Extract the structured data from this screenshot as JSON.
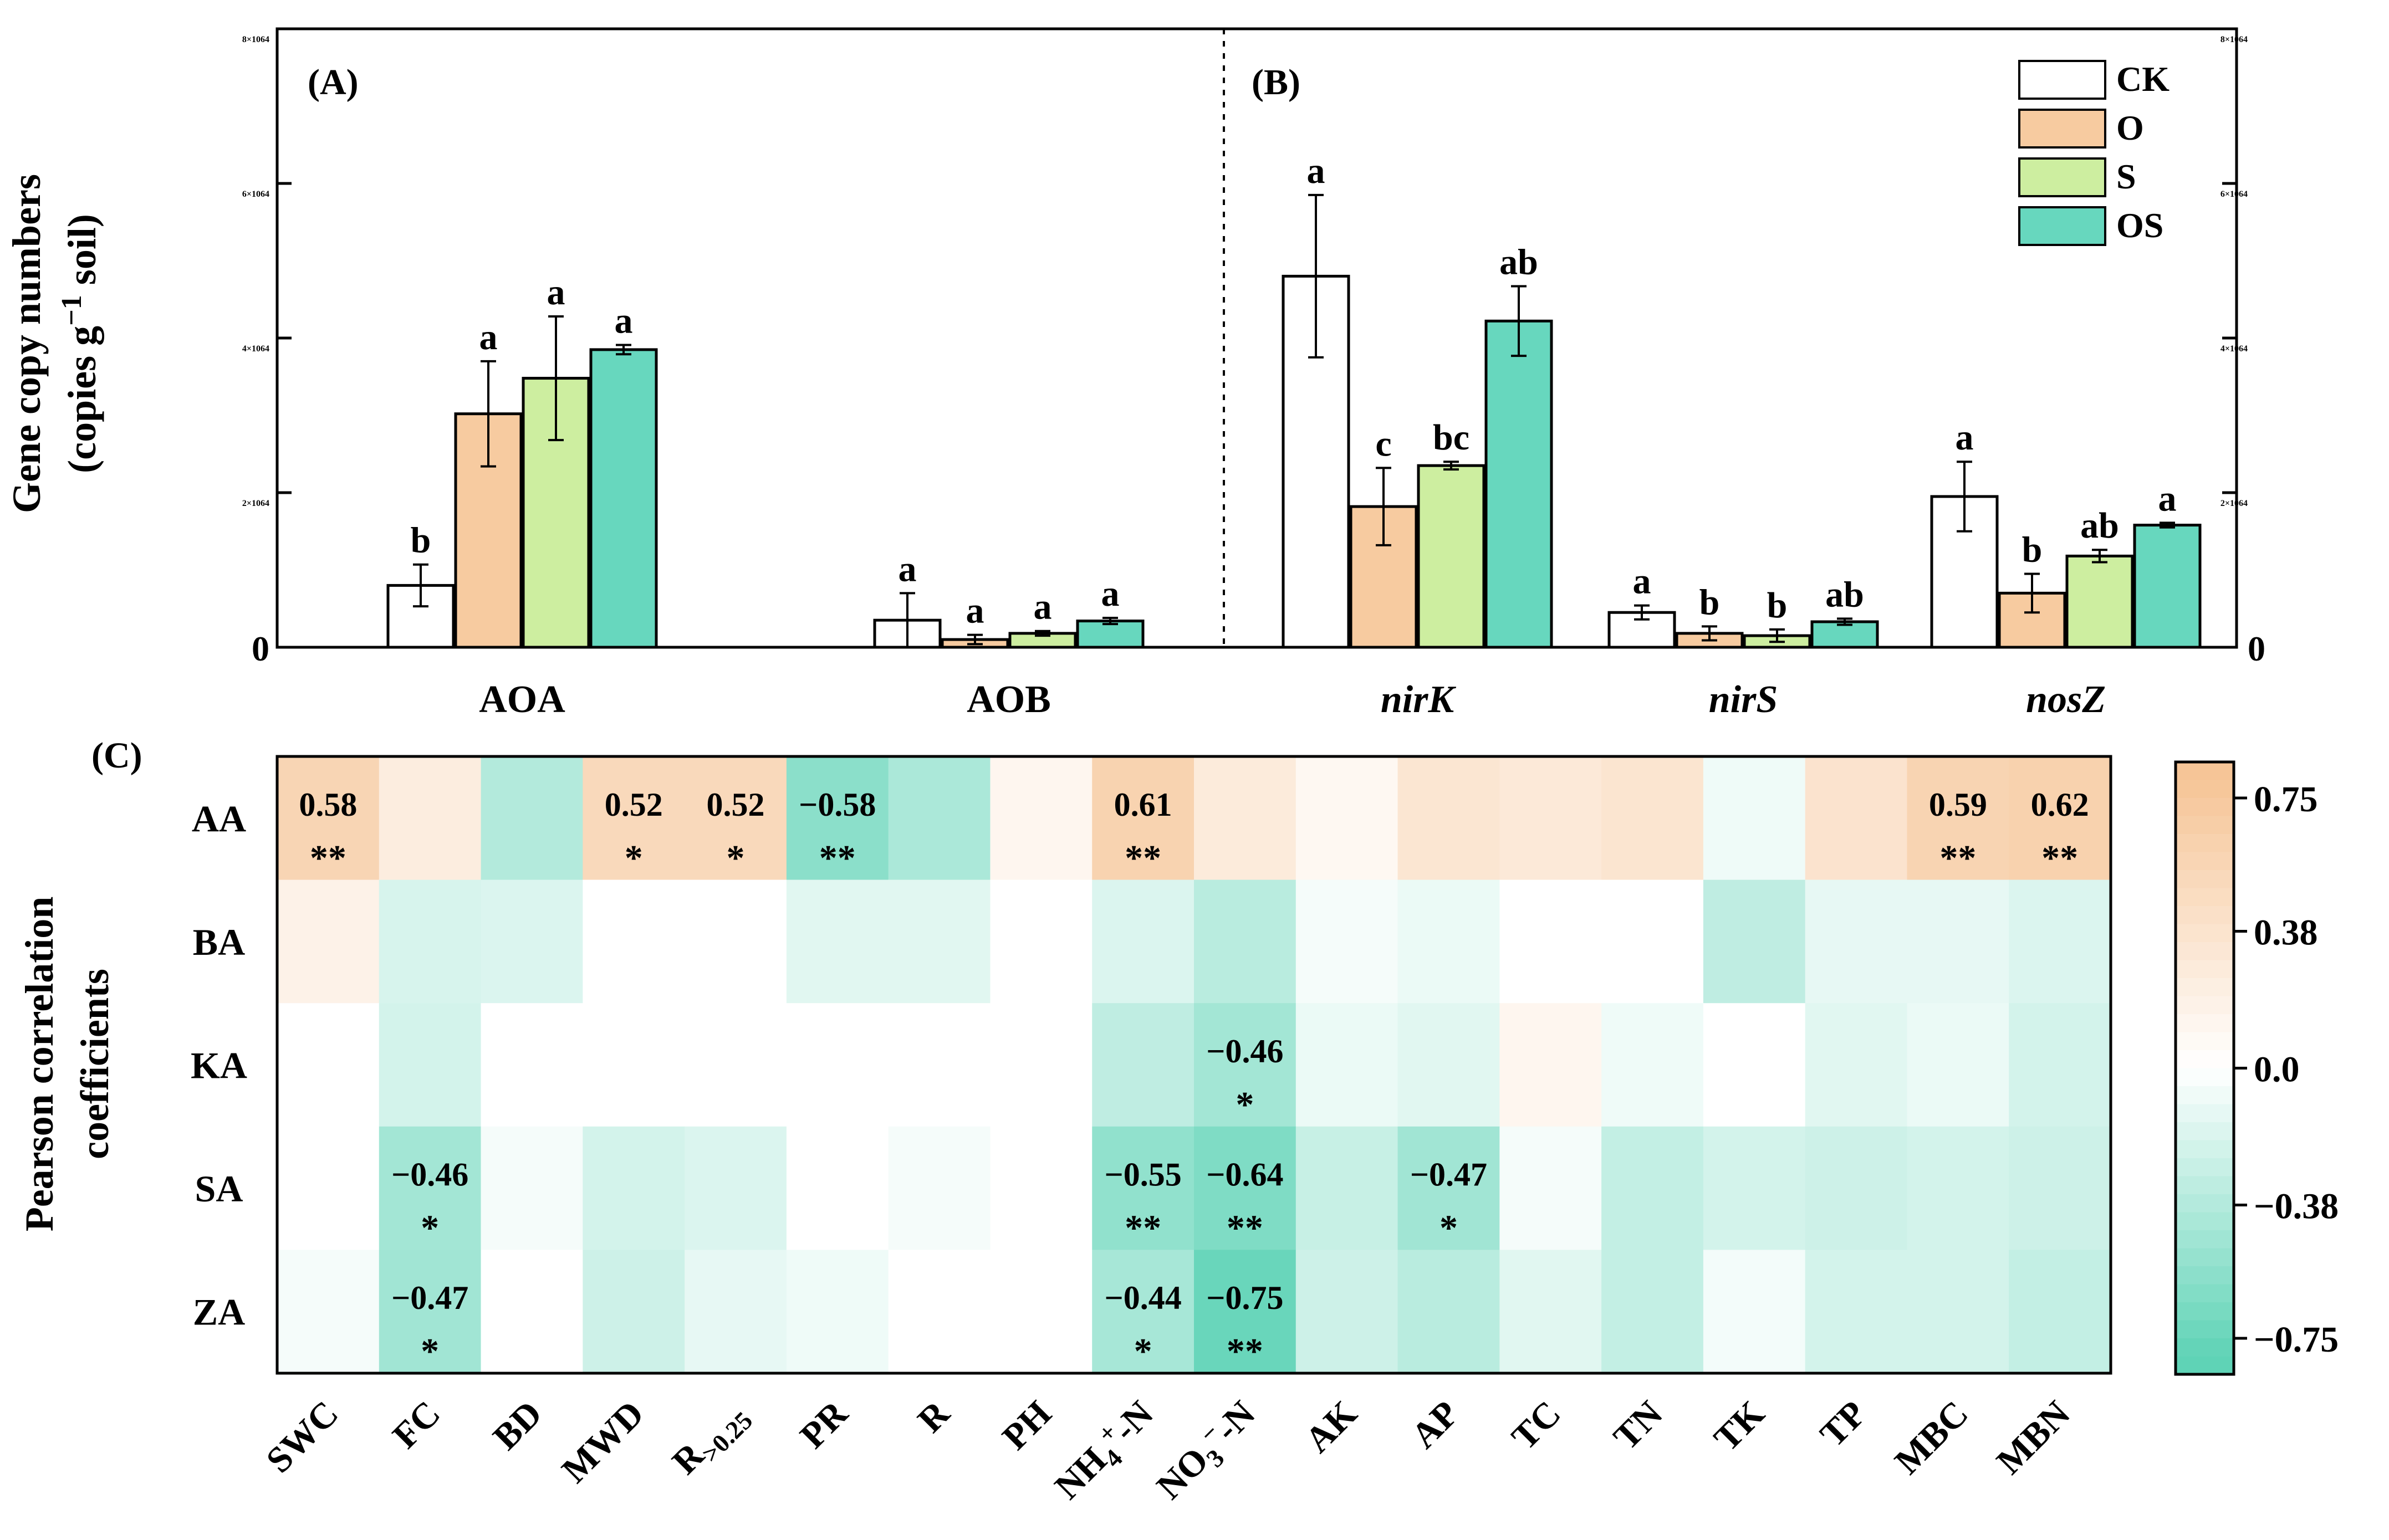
{
  "chart_data": [
    {
      "type": "bar",
      "panel": "(A)",
      "categories": [
        "AOA",
        "AOB"
      ],
      "ylabel_line1": "Gene copy numbers",
      "ylabel_line2a": "(copies g",
      "ylabel_line2sup": "−1",
      "ylabel_line2b": " soil)",
      "yticks": [
        {
          "value": 0,
          "label": "0"
        },
        {
          "value": 20000000.0,
          "label": "2×10",
          "exp": "7"
        },
        {
          "value": 40000000.0,
          "label": "4×10",
          "exp": "7"
        },
        {
          "value": 60000000.0,
          "label": "6×10",
          "exp": "7"
        },
        {
          "value": 80000000.0,
          "label": "8×10",
          "exp": "7"
        }
      ],
      "ylim": [
        0,
        80000000.0
      ],
      "series": [
        {
          "name": "CK",
          "color": "#ffffff",
          "values": [
            8000000.0,
            3500000.0
          ],
          "errors": [
            2700000.0,
            3500000.0
          ],
          "letters": [
            "b",
            "a"
          ]
        },
        {
          "name": "O",
          "color": "#f7cba0",
          "values": [
            30200000.0,
            1000000.0
          ],
          "errors": [
            6800000.0,
            600000.0
          ],
          "letters": [
            "a",
            "a"
          ]
        },
        {
          "name": "S",
          "color": "#cdeea0",
          "values": [
            34800000.0,
            1800000.0
          ],
          "errors": [
            8000000.0,
            300000.0
          ],
          "letters": [
            "a",
            "a"
          ]
        },
        {
          "name": "OS",
          "color": "#67d7be",
          "values": [
            38500000.0,
            3400000.0
          ],
          "errors": [
            600000.0,
            400000.0
          ],
          "letters": [
            "a",
            "a"
          ]
        }
      ]
    },
    {
      "type": "bar",
      "panel": "(B)",
      "categories": [
        "nirK",
        "nirS",
        "nosZ"
      ],
      "yticks": [
        {
          "value": 0,
          "label": "0"
        },
        {
          "value": 2000000.0,
          "label": "2×10",
          "exp": "6"
        },
        {
          "value": 4000000.0,
          "label": "4×10",
          "exp": "6"
        },
        {
          "value": 6000000.0,
          "label": "6×10",
          "exp": "6"
        },
        {
          "value": 8000000.0,
          "label": "8×10",
          "exp": "6"
        }
      ],
      "ylim": [
        0,
        8000000.0
      ],
      "series": [
        {
          "name": "CK",
          "color": "#ffffff",
          "values": [
            4800000.0,
            450000.0,
            1950000.0
          ],
          "errors": [
            1050000.0,
            90000.0,
            450000.0
          ],
          "letters": [
            "a",
            "a",
            "a"
          ]
        },
        {
          "name": "O",
          "color": "#f7cba0",
          "values": [
            1820000.0,
            180000.0,
            700000.0
          ],
          "errors": [
            500000.0,
            90000.0,
            250000.0
          ],
          "letters": [
            "c",
            "b",
            "b"
          ]
        },
        {
          "name": "S",
          "color": "#cdeea0",
          "values": [
            2350000.0,
            150000.0,
            1180000.0
          ],
          "errors": [
            50000.0,
            80000.0,
            80000.0
          ],
          "letters": [
            "bc",
            "b",
            "ab"
          ]
        },
        {
          "name": "OS",
          "color": "#67d7be",
          "values": [
            4220000.0,
            330000.0,
            1580000.0
          ],
          "errors": [
            450000.0,
            40000.0,
            30000.0
          ],
          "letters": [
            "ab",
            "ab",
            "a"
          ]
        }
      ]
    },
    {
      "type": "heatmap",
      "panel": "(C)",
      "ylabel_line1": "Pearson correlation",
      "ylabel_line2": "coefficients",
      "rows": [
        "AA",
        "BA",
        "KA",
        "SA",
        "ZA"
      ],
      "columns": [
        "SWC",
        "FC",
        "BD",
        "MWD",
        "R>0.25",
        "PR",
        "R",
        "PH",
        "NH4+-N",
        "NO3--N",
        "AK",
        "AP",
        "TC",
        "TN",
        "TK",
        "TP",
        "MBC",
        "MBN"
      ],
      "values": [
        [
          0.58,
          0.25,
          -0.38,
          0.52,
          0.52,
          -0.58,
          -0.42,
          0.12,
          0.61,
          0.28,
          0.1,
          0.35,
          0.3,
          0.36,
          -0.08,
          0.38,
          0.59,
          0.62
        ],
        [
          0.18,
          -0.2,
          -0.18,
          0.0,
          0.0,
          -0.15,
          -0.15,
          0.0,
          -0.18,
          -0.35,
          -0.05,
          -0.1,
          0.0,
          0.0,
          -0.32,
          -0.12,
          -0.12,
          -0.18
        ],
        [
          0.0,
          -0.22,
          0.0,
          0.0,
          0.0,
          0.0,
          0.0,
          0.0,
          -0.32,
          -0.46,
          -0.1,
          -0.15,
          0.12,
          -0.08,
          0.0,
          -0.15,
          -0.1,
          -0.22
        ],
        [
          0.0,
          -0.46,
          -0.05,
          -0.22,
          -0.18,
          0.0,
          -0.05,
          0.0,
          -0.55,
          -0.64,
          -0.28,
          -0.47,
          -0.05,
          -0.3,
          -0.22,
          -0.25,
          -0.22,
          -0.25
        ],
        [
          -0.05,
          -0.47,
          0.0,
          -0.25,
          -0.12,
          -0.08,
          0.0,
          0.0,
          -0.44,
          -0.75,
          -0.25,
          -0.35,
          -0.15,
          -0.3,
          -0.06,
          -0.22,
          -0.22,
          -0.3
        ]
      ],
      "annotations": [
        {
          "row": 0,
          "col": 0,
          "text": "0.58",
          "stars": "**"
        },
        {
          "row": 0,
          "col": 3,
          "text": "0.52",
          "stars": "*"
        },
        {
          "row": 0,
          "col": 4,
          "text": "0.52",
          "stars": "*"
        },
        {
          "row": 0,
          "col": 5,
          "text": "−0.58",
          "stars": "**"
        },
        {
          "row": 0,
          "col": 8,
          "text": "0.61",
          "stars": "**"
        },
        {
          "row": 0,
          "col": 16,
          "text": "0.59",
          "stars": "**"
        },
        {
          "row": 0,
          "col": 17,
          "text": "0.62",
          "stars": "**"
        },
        {
          "row": 2,
          "col": 9,
          "text": "−0.46",
          "stars": "*"
        },
        {
          "row": 3,
          "col": 1,
          "text": "−0.46",
          "stars": "*"
        },
        {
          "row": 3,
          "col": 8,
          "text": "−0.55",
          "stars": "**"
        },
        {
          "row": 3,
          "col": 9,
          "text": "−0.64",
          "stars": "**"
        },
        {
          "row": 3,
          "col": 11,
          "text": "−0.47",
          "stars": "*"
        },
        {
          "row": 4,
          "col": 1,
          "text": "−0.47",
          "stars": "*"
        },
        {
          "row": 4,
          "col": 8,
          "text": "−0.44",
          "stars": "*"
        },
        {
          "row": 4,
          "col": 9,
          "text": "−0.75",
          "stars": "**"
        }
      ],
      "colorbar": {
        "range": [
          -0.85,
          0.85
        ],
        "ticks": [
          {
            "value": 0.75,
            "label": "0.75"
          },
          {
            "value": 0.38,
            "label": "0.38"
          },
          {
            "value": 0.0,
            "label": "0.0"
          },
          {
            "value": -0.38,
            "label": "−0.38"
          },
          {
            "value": -0.75,
            "label": "−0.75"
          }
        ],
        "positive_color": "#f6c597",
        "negative_color": "#5fd3b6"
      }
    }
  ],
  "legend": {
    "items": [
      {
        "name": "CK",
        "color": "#ffffff"
      },
      {
        "name": "O",
        "color": "#f7cba0"
      },
      {
        "name": "S",
        "color": "#cdeea0"
      },
      {
        "name": "OS",
        "color": "#67d7be"
      }
    ]
  }
}
